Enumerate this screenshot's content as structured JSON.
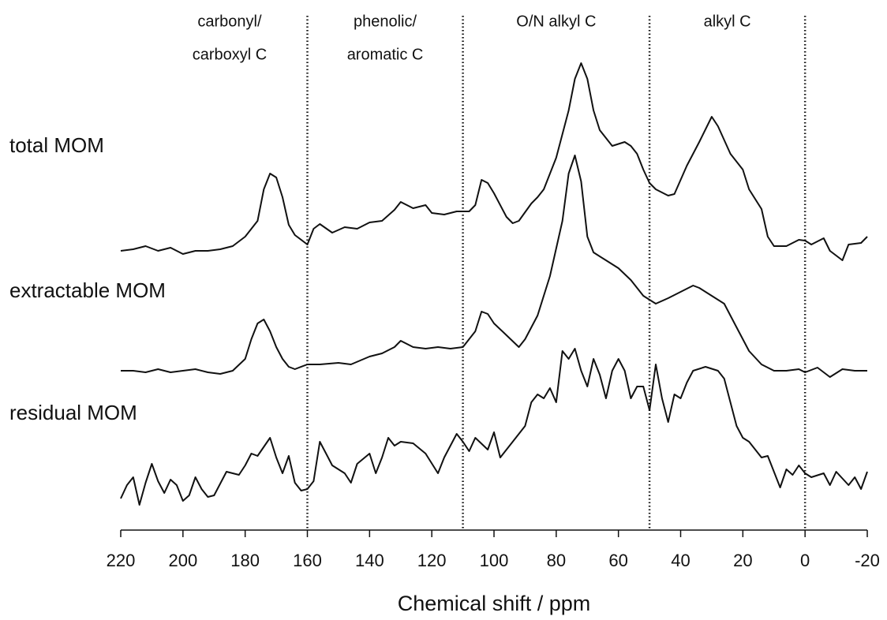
{
  "chart_data": {
    "type": "line",
    "xlabel": "Chemical shift / ppm",
    "xlim": [
      220,
      -20
    ],
    "xticks": [
      220,
      200,
      180,
      160,
      140,
      120,
      100,
      80,
      60,
      40,
      20,
      0,
      -20
    ],
    "dividers": [
      160,
      110,
      50,
      0
    ],
    "regions": [
      [
        "carbonyl/",
        "carboxyl C"
      ],
      [
        "phenolic/",
        "aromatic C"
      ],
      [
        "O/N alkyl C"
      ],
      [
        "alkyl C"
      ]
    ],
    "series": [
      {
        "name": "total MOM",
        "color": "#111111",
        "x": [
          220,
          216,
          212,
          208,
          204,
          200,
          196,
          192,
          188,
          184,
          180,
          176,
          174,
          172,
          170,
          168,
          166,
          164,
          160,
          158,
          156,
          152,
          148,
          144,
          140,
          136,
          132,
          130,
          126,
          122,
          120,
          116,
          112,
          108,
          106,
          104,
          102,
          100,
          96,
          94,
          92,
          88,
          86,
          84,
          80,
          76,
          74,
          72,
          70,
          68,
          66,
          62,
          58,
          56,
          54,
          52,
          50,
          48,
          44,
          42,
          38,
          34,
          30,
          28,
          24,
          20,
          18,
          14,
          12,
          10,
          6,
          2,
          0,
          -2,
          -6,
          -8,
          -12,
          -14,
          -18,
          -20
        ],
        "values": [
          2,
          4,
          8,
          2,
          6,
          -2,
          2,
          2,
          4,
          8,
          20,
          40,
          80,
          100,
          95,
          70,
          35,
          22,
          10,
          30,
          36,
          25,
          32,
          30,
          38,
          40,
          54,
          64,
          56,
          60,
          50,
          48,
          52,
          52,
          60,
          92,
          88,
          75,
          45,
          37,
          40,
          62,
          70,
          80,
          120,
          180,
          220,
          240,
          220,
          180,
          155,
          135,
          140,
          135,
          125,
          105,
          88,
          80,
          72,
          74,
          110,
          140,
          172,
          160,
          125,
          105,
          80,
          55,
          20,
          8,
          8,
          16,
          15,
          10,
          18,
          2,
          -10,
          10,
          12,
          20
        ]
      },
      {
        "name": "extractable MOM",
        "color": "#111111",
        "x": [
          220,
          216,
          212,
          208,
          204,
          200,
          196,
          192,
          188,
          184,
          180,
          178,
          176,
          174,
          172,
          170,
          168,
          166,
          164,
          160,
          156,
          150,
          146,
          140,
          136,
          132,
          130,
          126,
          122,
          118,
          114,
          110,
          106,
          104,
          102,
          100,
          96,
          92,
          90,
          86,
          82,
          78,
          76,
          74,
          72,
          70,
          68,
          64,
          60,
          56,
          52,
          48,
          44,
          40,
          36,
          34,
          30,
          26,
          22,
          18,
          14,
          10,
          6,
          2,
          0,
          -4,
          -8,
          -12,
          -16,
          -20
        ],
        "values": [
          2,
          2,
          0,
          4,
          0,
          2,
          4,
          0,
          -2,
          2,
          17,
          42,
          62,
          67,
          52,
          32,
          17,
          7,
          4,
          10,
          10,
          12,
          10,
          20,
          24,
          32,
          40,
          32,
          30,
          32,
          30,
          32,
          52,
          77,
          74,
          62,
          47,
          32,
          42,
          72,
          122,
          192,
          252,
          275,
          242,
          172,
          152,
          142,
          132,
          117,
          97,
          87,
          94,
          102,
          110,
          107,
          97,
          87,
          57,
          27,
          10,
          2,
          2,
          4,
          0,
          6,
          -6,
          4,
          2,
          2
        ]
      },
      {
        "name": "residual MOM",
        "color": "#111111",
        "x": [
          220,
          218,
          216,
          214,
          212,
          210,
          208,
          206,
          204,
          202,
          200,
          198,
          196,
          194,
          192,
          190,
          186,
          182,
          180,
          178,
          176,
          172,
          170,
          168,
          166,
          164,
          162,
          160,
          158,
          156,
          154,
          152,
          148,
          146,
          144,
          140,
          138,
          136,
          134,
          132,
          130,
          126,
          122,
          118,
          116,
          114,
          112,
          110,
          108,
          106,
          102,
          100,
          98,
          94,
          90,
          88,
          86,
          84,
          82,
          80,
          78,
          76,
          74,
          72,
          70,
          68,
          66,
          64,
          62,
          60,
          58,
          56,
          54,
          52,
          50,
          48,
          46,
          44,
          42,
          40,
          38,
          36,
          32,
          28,
          26,
          22,
          20,
          18,
          14,
          12,
          8,
          6,
          4,
          2,
          0,
          -2,
          -6,
          -8,
          -10,
          -14,
          -16,
          -18,
          -20
        ],
        "values": [
          8,
          25,
          35,
          0,
          28,
          52,
          30,
          15,
          32,
          25,
          5,
          12,
          35,
          20,
          10,
          12,
          42,
          38,
          50,
          65,
          62,
          85,
          60,
          40,
          62,
          28,
          18,
          20,
          30,
          80,
          65,
          50,
          40,
          28,
          52,
          65,
          40,
          60,
          85,
          75,
          80,
          78,
          65,
          40,
          60,
          75,
          90,
          80,
          68,
          85,
          70,
          92,
          60,
          80,
          100,
          130,
          140,
          135,
          148,
          130,
          195,
          185,
          198,
          170,
          150,
          185,
          165,
          135,
          170,
          185,
          170,
          135,
          150,
          150,
          120,
          178,
          135,
          105,
          140,
          135,
          155,
          170,
          175,
          170,
          160,
          100,
          85,
          80,
          60,
          62,
          22,
          45,
          38,
          50,
          40,
          35,
          40,
          25,
          42,
          25,
          35,
          20,
          42
        ]
      }
    ]
  }
}
